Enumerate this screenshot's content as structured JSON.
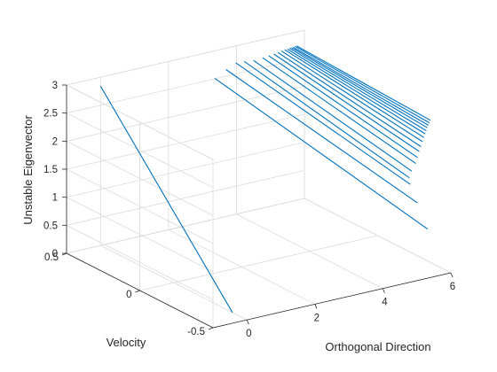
{
  "chart_data": {
    "type": "line",
    "view": "3d",
    "xlabel": "Orthogonal Direction",
    "ylabel": "Velocity",
    "zlabel": "Unstable Eigenvector",
    "xlim": [
      -1,
      6
    ],
    "ylim": [
      -0.5,
      0.5
    ],
    "zlim": [
      0,
      3
    ],
    "xticks": [
      0,
      2,
      4,
      6
    ],
    "yticks": [
      -0.5,
      0,
      0.5
    ],
    "zticks": [
      0,
      0.5,
      1,
      1.5,
      2,
      2.5,
      3
    ],
    "xtick_labels": [
      "0",
      "2",
      "4",
      "6"
    ],
    "ytick_labels": [
      "-0.5",
      "0",
      "0.5"
    ],
    "ztick_labels": [
      "0",
      "0.5",
      "1",
      "1.5",
      "2",
      "2.5",
      "3"
    ],
    "grid": true,
    "line_color": "#0072bd",
    "series": [
      {
        "x": [
          0,
          0
        ],
        "y": [
          -0.4,
          0.5
        ],
        "z": [
          0,
          2.84
        ]
      },
      {
        "x": [
          5.75,
          3.36
        ],
        "y": [
          -0.4,
          0.5
        ],
        "z": [
          0.68,
          2.51
        ]
      },
      {
        "x": [
          5.45,
          3.69
        ],
        "y": [
          -0.4,
          0.5
        ],
        "z": [
          1.19,
          2.62
        ]
      },
      {
        "x": [
          5.24,
          3.98
        ],
        "y": [
          -0.4,
          0.5
        ],
        "z": [
          1.55,
          2.7
        ]
      },
      {
        "x": [
          5.21,
          4.23
        ],
        "y": [
          -0.4,
          0.5
        ],
        "z": [
          1.67,
          2.69
        ]
      },
      {
        "x": [
          5.28,
          4.5
        ],
        "y": [
          -0.4,
          0.5
        ],
        "z": [
          1.78,
          2.67
        ]
      },
      {
        "x": [
          5.4,
          4.77
        ],
        "y": [
          -0.4,
          0.5
        ],
        "z": [
          1.9,
          2.68
        ]
      },
      {
        "x": [
          5.45,
          4.95
        ],
        "y": [
          -0.4,
          0.5
        ],
        "z": [
          2.0,
          2.69
        ]
      },
      {
        "x": [
          5.5,
          5.1
        ],
        "y": [
          -0.4,
          0.5
        ],
        "z": [
          2.1,
          2.7
        ]
      },
      {
        "x": [
          5.55,
          5.22
        ],
        "y": [
          -0.4,
          0.5
        ],
        "z": [
          2.18,
          2.71
        ]
      },
      {
        "x": [
          5.6,
          5.33
        ],
        "y": [
          -0.4,
          0.5
        ],
        "z": [
          2.26,
          2.72
        ]
      },
      {
        "x": [
          5.64,
          5.42
        ],
        "y": [
          -0.4,
          0.5
        ],
        "z": [
          2.33,
          2.73
        ]
      },
      {
        "x": [
          5.68,
          5.5
        ],
        "y": [
          -0.4,
          0.5
        ],
        "z": [
          2.39,
          2.73
        ]
      },
      {
        "x": [
          5.71,
          5.56
        ],
        "y": [
          -0.4,
          0.5
        ],
        "z": [
          2.44,
          2.74
        ]
      },
      {
        "x": [
          5.74,
          5.62
        ],
        "y": [
          -0.4,
          0.5
        ],
        "z": [
          2.49,
          2.74
        ]
      },
      {
        "x": [
          5.77,
          5.67
        ],
        "y": [
          -0.4,
          0.5
        ],
        "z": [
          2.53,
          2.74
        ]
      },
      {
        "x": [
          5.8,
          5.72
        ],
        "y": [
          -0.4,
          0.5
        ],
        "z": [
          2.57,
          2.75
        ]
      },
      {
        "x": [
          5.83,
          5.77
        ],
        "y": [
          -0.4,
          0.5
        ],
        "z": [
          2.61,
          2.75
        ]
      }
    ]
  }
}
